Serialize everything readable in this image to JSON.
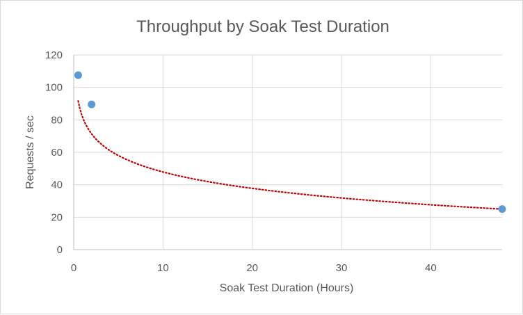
{
  "chart_data": {
    "type": "scatter",
    "title": "Throughput by Soak Test Duration",
    "xlabel": "Soak Test Duration (Hours)",
    "ylabel": "Requests / sec",
    "xlim": [
      0,
      48
    ],
    "ylim": [
      0,
      120
    ],
    "x_ticks": [
      0,
      10,
      20,
      30,
      40
    ],
    "y_ticks": [
      0,
      20,
      40,
      60,
      80,
      100,
      120
    ],
    "grid": true,
    "legend": "none",
    "series": [
      {
        "name": "Requests / sec",
        "color": "#5b9bd5",
        "points": [
          {
            "x": 0.5,
            "y": 107.5
          },
          {
            "x": 2,
            "y": 89.5
          },
          {
            "x": 48,
            "y": 25
          }
        ]
      }
    ],
    "trendline": {
      "type": "logarithmic",
      "color": "#c00000",
      "style": "dotted",
      "a": 81.5,
      "b": -14.6,
      "x_start": 0.5,
      "x_end": 48
    }
  }
}
